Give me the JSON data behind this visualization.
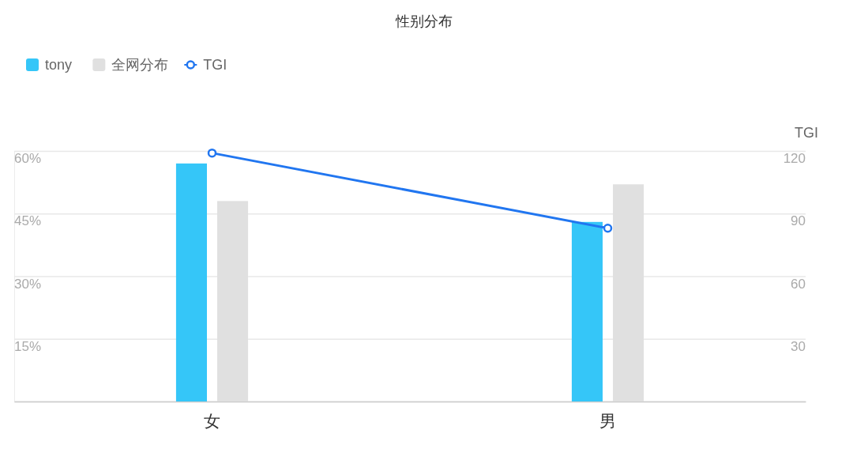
{
  "chart_data": {
    "type": "bar",
    "title": "性别分布",
    "categories": [
      "女",
      "男"
    ],
    "series": [
      {
        "name": "tony",
        "color": "#35c6f8",
        "values": [
          57,
          43
        ]
      },
      {
        "name": "全网分布",
        "color": "#e0e0e0",
        "values": [
          48,
          52
        ]
      },
      {
        "name": "TGI",
        "type": "line",
        "axis": "y2",
        "color": "#2176f0",
        "values": [
          119,
          83
        ]
      }
    ],
    "ylim": [
      0,
      60
    ],
    "yticks": [
      {
        "value": 0,
        "label": null
      },
      {
        "value": 15,
        "label": "15%"
      },
      {
        "value": 30,
        "label": "30%"
      },
      {
        "value": 45,
        "label": "45%"
      },
      {
        "value": 60,
        "label": "60%"
      }
    ],
    "y2label": "TGI",
    "y2lim": [
      0,
      120
    ],
    "y2ticks": [
      30,
      60,
      90,
      120
    ],
    "grid": "y",
    "legend": "top left",
    "marker": "circle"
  }
}
